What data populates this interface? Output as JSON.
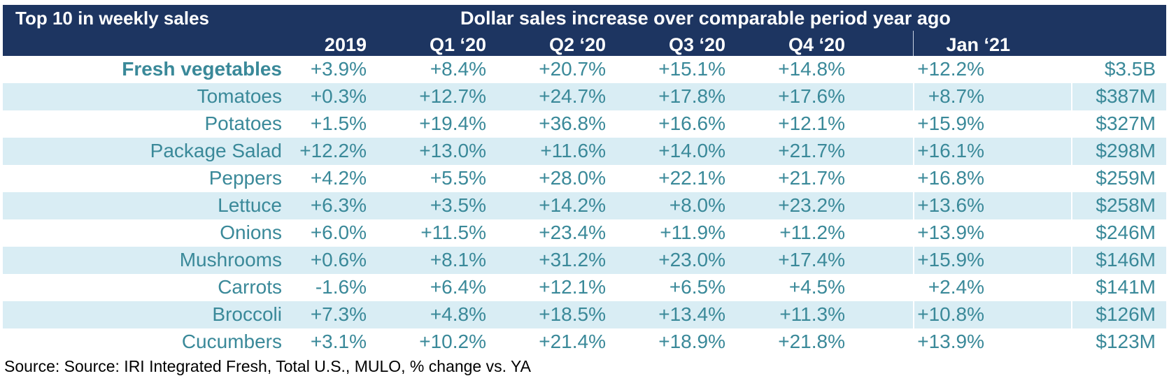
{
  "chart_data": {
    "type": "table",
    "title": "Top 10 in weekly sales",
    "subtitle": "Dollar sales increase over comparable period year ago",
    "columns": [
      "2019",
      "Q1 ‘20",
      "Q2 ‘20",
      "Q3 ‘20",
      "Q4 ‘20",
      "Jan ‘21"
    ],
    "rows": [
      {
        "name": "Fresh vegetables",
        "values": [
          "+3.9%",
          "+8.4%",
          "+20.7%",
          "+15.1%",
          "+14.8%",
          "+12.2%"
        ],
        "sales": "$3.5B"
      },
      {
        "name": "Tomatoes",
        "values": [
          "+0.3%",
          "+12.7%",
          "+24.7%",
          "+17.8%",
          "+17.6%",
          "+8.7%"
        ],
        "sales": "$387M"
      },
      {
        "name": "Potatoes",
        "values": [
          "+1.5%",
          "+19.4%",
          "+36.8%",
          "+16.6%",
          "+12.1%",
          "+15.9%"
        ],
        "sales": "$327M"
      },
      {
        "name": "Package Salad",
        "values": [
          "+12.2%",
          "+13.0%",
          "+11.6%",
          "+14.0%",
          "+21.7%",
          "+16.1%"
        ],
        "sales": "$298M"
      },
      {
        "name": "Peppers",
        "values": [
          "+4.2%",
          "+5.5%",
          "+28.0%",
          "+22.1%",
          "+21.7%",
          "+16.8%"
        ],
        "sales": "$259M"
      },
      {
        "name": "Lettuce",
        "values": [
          "+6.3%",
          "+3.5%",
          "+14.2%",
          "+8.0%",
          "+23.2%",
          "+13.6%"
        ],
        "sales": "$258M"
      },
      {
        "name": "Onions",
        "values": [
          "+6.0%",
          "+11.5%",
          "+23.4%",
          "+11.9%",
          "+11.2%",
          "+13.9%"
        ],
        "sales": "$246M"
      },
      {
        "name": "Mushrooms",
        "values": [
          "+0.6%",
          "+8.1%",
          "+31.2%",
          "+23.0%",
          "+17.4%",
          "+15.9%"
        ],
        "sales": "$146M"
      },
      {
        "name": "Carrots",
        "values": [
          "-1.6%",
          "+6.4%",
          "+12.1%",
          "+6.5%",
          "+4.5%",
          "+2.4%"
        ],
        "sales": "$141M"
      },
      {
        "name": "Broccoli",
        "values": [
          "+7.3%",
          "+4.8%",
          "+18.5%",
          "+13.4%",
          "+11.3%",
          "+10.8%"
        ],
        "sales": "$126M"
      },
      {
        "name": "Cucumbers",
        "values": [
          "+3.1%",
          "+10.2%",
          "+21.4%",
          "+18.9%",
          "+21.8%",
          "+13.9%"
        ],
        "sales": "$123M"
      }
    ],
    "source": "Source: Source: IRI Integrated Fresh, Total U.S., MULO, % change vs. YA"
  },
  "colors": {
    "header_background": "#1d3561",
    "header_text": "#ffffff",
    "band_background": "#d9edf4",
    "body_text": "#3a8999"
  }
}
